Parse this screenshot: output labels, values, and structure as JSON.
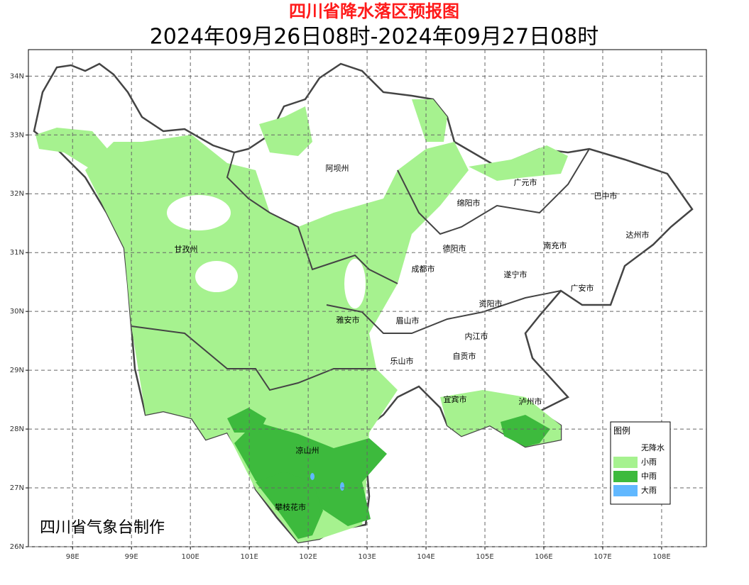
{
  "header": {
    "title": "四川省降水落区预报图",
    "subtitle": "2024年09月26日08时-2024年09月27日08时"
  },
  "map": {
    "xlim": [
      97.25,
      108.76
    ],
    "ylim": [
      26,
      34.45
    ],
    "xticks": [
      {
        "value": 98,
        "label": "98E"
      },
      {
        "value": 99,
        "label": "99E"
      },
      {
        "value": 100,
        "label": "100E"
      },
      {
        "value": 101,
        "label": "101E"
      },
      {
        "value": 102,
        "label": "102E"
      },
      {
        "value": 103,
        "label": "103E"
      },
      {
        "value": 104,
        "label": "104E"
      },
      {
        "value": 105,
        "label": "105E"
      },
      {
        "value": 106,
        "label": "106E"
      },
      {
        "value": 107,
        "label": "107E"
      },
      {
        "value": 108,
        "label": "108E"
      }
    ],
    "yticks": [
      {
        "value": 26,
        "label": "26N"
      },
      {
        "value": 27,
        "label": "27N"
      },
      {
        "value": 28,
        "label": "28N"
      },
      {
        "value": 29,
        "label": "29N"
      },
      {
        "value": 30,
        "label": "30N"
      },
      {
        "value": 31,
        "label": "31N"
      },
      {
        "value": 32,
        "label": "32N"
      },
      {
        "value": 33,
        "label": "33N"
      },
      {
        "value": 34,
        "label": "34N"
      }
    ],
    "grid": true,
    "cities": [
      "阿坝州",
      "广元市",
      "巴中市",
      "绵阳市",
      "甘孜州",
      "德阳市",
      "南充市",
      "达州市",
      "成都市",
      "遂宁市",
      "广安市",
      "资阳市",
      "雅安市",
      "眉山市",
      "内江市",
      "自贡市",
      "乐山市",
      "宜宾市",
      "泸州市",
      "凉山州",
      "攀枝花市"
    ],
    "legend": {
      "title": "图例",
      "items": [
        {
          "name": "无降水",
          "color": "#ffffff"
        },
        {
          "name": "小雨",
          "color": "#a6f28f"
        },
        {
          "name": "中雨",
          "color": "#3dba3d"
        },
        {
          "name": "大雨",
          "color": "#61b8ff"
        }
      ]
    },
    "credit": "四川省气象台制作"
  }
}
